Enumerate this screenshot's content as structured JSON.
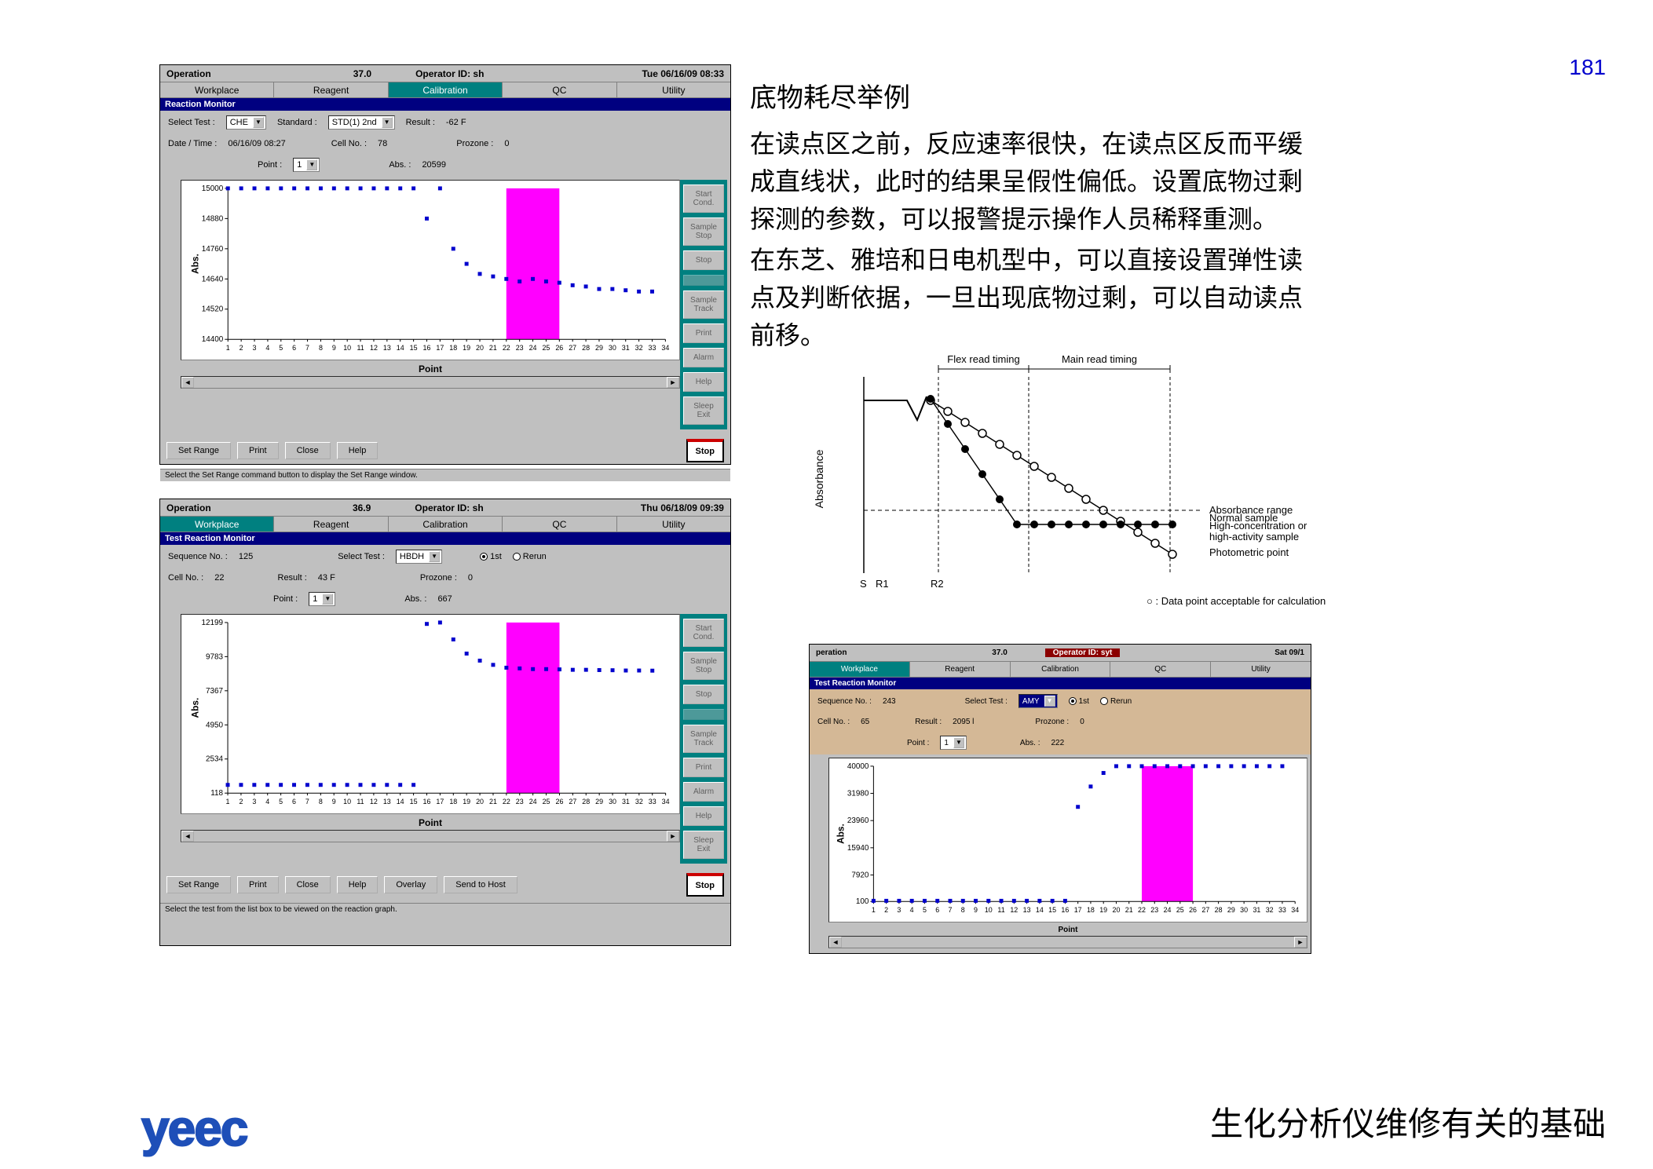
{
  "page_number": "181",
  "footer_title": "生化分析仪维修有关的基础",
  "logo_text": "yeec",
  "explain": {
    "title": "底物耗尽举例",
    "p1": "在读点区之前，反应速率很快，在读点区反而平缓成直线状，此时的结果呈假性偏低。设置底物过剩探测的参数，可以报警提示操作人员稀释重测。",
    "p2": "在东芝、雅培和日电机型中，可以直接设置弹性读点及判断依据，一旦出现底物过剩，可以自动读点前移。"
  },
  "app1": {
    "title_op": "Operation",
    "temp": "37.0",
    "operator": "Operator ID: sh",
    "datetime": "Tue 06/16/09 08:33",
    "menu": [
      "Workplace",
      "Reagent",
      "Calibration",
      "QC",
      "Utility"
    ],
    "menu_active_index": 2,
    "subtitle": "Reaction Monitor",
    "select_test_lbl": "Select Test :",
    "select_test_val": "CHE",
    "standard_lbl": "Standard :",
    "standard_val": "STD(1) 2nd",
    "result_lbl": "Result :",
    "result_val": "-62 F",
    "datetime_lbl": "Date / Time :",
    "datetime_val": "06/16/09 08:27",
    "cellno_lbl": "Cell No. :",
    "cellno_val": "78",
    "prozone_lbl": "Prozone :",
    "prozone_val": "0",
    "point_lbl": "Point :",
    "point_val": "1",
    "abs_lbl": "Abs. :",
    "abs_val": "20599",
    "buttons": [
      "Set Range",
      "Print",
      "Close",
      "Help"
    ],
    "stop": "Stop",
    "status": "Select the Set Range command button to display the Set Range window.",
    "sidebar": [
      "Start\nCond.",
      "Sample\nStop",
      "Stop",
      "",
      "Sample\nTrack",
      "Print",
      "Alarm",
      "Help",
      "Sleep\nExit"
    ],
    "chart": {
      "ylabel": "Abs.",
      "xlabel": "Point",
      "xmin": 1,
      "xmax": 34,
      "ymin": 14400,
      "ymax": 15000,
      "yticks": [
        14400,
        14520,
        14640,
        14760,
        14880,
        15000
      ],
      "highlight_x": [
        22,
        26
      ],
      "highlight_color": "#ff00ff",
      "point_color": "#0000cd",
      "points_x": [
        1,
        2,
        3,
        4,
        5,
        6,
        7,
        8,
        9,
        10,
        11,
        12,
        13,
        14,
        15,
        16,
        17,
        18,
        19,
        20,
        21,
        22,
        23,
        24,
        25,
        26,
        27,
        28,
        29,
        30,
        31,
        32,
        33
      ],
      "points_y": [
        15000,
        15000,
        15000,
        15000,
        15000,
        15000,
        15000,
        15000,
        15000,
        15000,
        15000,
        15000,
        15000,
        15000,
        15000,
        14880,
        15000,
        14760,
        14700,
        14660,
        14650,
        14640,
        14630,
        14640,
        14630,
        14625,
        14615,
        14610,
        14600,
        14600,
        14595,
        14590,
        14590
      ]
    }
  },
  "app2": {
    "title_op": "Operation",
    "temp": "36.9",
    "operator": "Operator ID: sh",
    "datetime": "Thu 06/18/09 09:39",
    "menu": [
      "Workplace",
      "Reagent",
      "Calibration",
      "QC",
      "Utility"
    ],
    "menu_active_index": 0,
    "subtitle": "Test Reaction Monitor",
    "seq_lbl": "Sequence No. :",
    "seq_val": "125",
    "select_test_lbl": "Select Test :",
    "select_test_val": "HBDH",
    "radio_1st": "1st",
    "radio_rerun": "Rerun",
    "cellno_lbl": "Cell No. :",
    "cellno_val": "22",
    "result_lbl": "Result :",
    "result_val": "43 F",
    "prozone_lbl": "Prozone :",
    "prozone_val": "0",
    "point_lbl": "Point :",
    "point_val": "1",
    "abs_lbl": "Abs. :",
    "abs_val": "667",
    "buttons": [
      "Set Range",
      "Print",
      "Close",
      "Help",
      "Overlay",
      "Send to Host"
    ],
    "stop": "Stop",
    "status": "Select the test from the list box to be viewed on the reaction graph.",
    "sidebar": [
      "Start\nCond.",
      "Sample\nStop",
      "Stop",
      "",
      "Sample\nTrack",
      "Print",
      "Alarm",
      "Help",
      "Sleep\nExit"
    ],
    "chart": {
      "ylabel": "Abs.",
      "xlabel": "Point",
      "xmin": 1,
      "xmax": 34,
      "ymin": 118,
      "ymax": 12199,
      "yticks": [
        118,
        2534,
        4950,
        7367,
        9783,
        12199
      ],
      "highlight_x": [
        22,
        26
      ],
      "highlight_color": "#ff00ff",
      "point_color": "#0000cd",
      "points_x": [
        1,
        2,
        3,
        4,
        5,
        6,
        7,
        8,
        9,
        10,
        11,
        12,
        13,
        14,
        15,
        16,
        17,
        18,
        19,
        20,
        21,
        22,
        23,
        24,
        25,
        26,
        27,
        28,
        29,
        30,
        31,
        32,
        33
      ],
      "points_y": [
        700,
        700,
        700,
        700,
        700,
        700,
        700,
        700,
        700,
        700,
        700,
        700,
        700,
        700,
        700,
        12100,
        12199,
        11000,
        10000,
        9500,
        9200,
        9000,
        8950,
        8900,
        8900,
        8880,
        8850,
        8850,
        8830,
        8820,
        8800,
        8800,
        8790
      ]
    }
  },
  "app3": {
    "title_op": "peration",
    "temp": "37.0",
    "operator": "Operator ID: syt",
    "datetime": "Sat 09/1",
    "menu": [
      "Workplace",
      "Reagent",
      "Calibration",
      "QC",
      "Utility"
    ],
    "menu_active_index": 0,
    "subtitle": "Test Reaction Monitor",
    "seq_lbl": "Sequence No. :",
    "seq_val": "243",
    "select_test_lbl": "Select Test :",
    "select_test_val": "AMY",
    "radio_1st": "1st",
    "radio_rerun": "Rerun",
    "cellno_lbl": "Cell No. :",
    "cellno_val": "65",
    "result_lbl": "Result :",
    "result_val": "2095 l",
    "prozone_lbl": "Prozone :",
    "prozone_val": "0",
    "point_lbl": "Point :",
    "point_val": "1",
    "abs_lbl": "Abs. :",
    "abs_val": "222",
    "sidebar": [],
    "chart": {
      "ylabel": "Abs.",
      "xlabel": "Point",
      "xmin": 1,
      "xmax": 34,
      "ymin": 100,
      "ymax": 40000,
      "yticks": [
        100,
        7920,
        15940,
        23960,
        31980,
        40000
      ],
      "highlight_x": [
        22,
        26
      ],
      "highlight_color": "#ff00ff",
      "point_color": "#0000cd",
      "points_x": [
        1,
        2,
        3,
        4,
        5,
        6,
        7,
        8,
        9,
        10,
        11,
        12,
        13,
        14,
        15,
        16,
        17,
        18,
        19,
        20,
        21,
        22,
        23,
        24,
        25,
        26,
        27,
        28,
        29,
        30,
        31,
        32,
        33
      ],
      "points_y": [
        300,
        300,
        300,
        300,
        300,
        300,
        300,
        300,
        300,
        300,
        300,
        300,
        300,
        300,
        300,
        300,
        28000,
        34000,
        38000,
        40000,
        40000,
        40000,
        40000,
        40000,
        40000,
        40000,
        40000,
        40000,
        40000,
        40000,
        40000,
        40000,
        40000
      ]
    }
  },
  "diagram": {
    "ylabel": "Absorbance",
    "flex_label": "Flex read timing",
    "main_label": "Main read timing",
    "normal_label": "Normal sample",
    "absrange_label": "Absorbance range",
    "highconc_label": "High-concentration or\nhigh-activity sample",
    "photo_label": "Photometric point",
    "bottom_labels": [
      "S",
      "R1",
      "R2"
    ],
    "caption": "○ : Data point acceptable for calculation",
    "open_circle": "#fff",
    "closed_circle": "#000",
    "stroke": "#000"
  }
}
